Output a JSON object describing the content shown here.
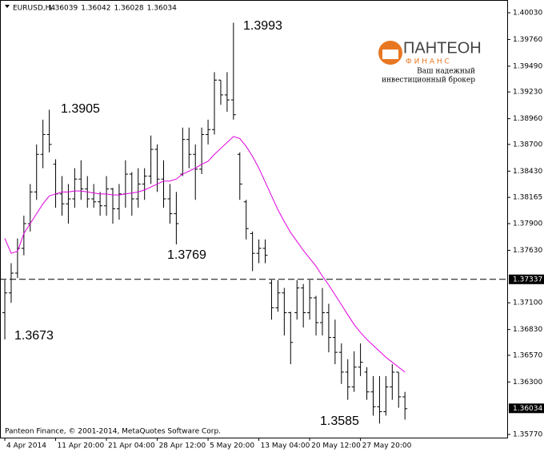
{
  "chart_data": {
    "type": "ohlc",
    "title": "EURUSD,H4",
    "header_values": [
      1.36039,
      1.36042,
      1.36028,
      1.36034
    ],
    "footer": "Panteon Finance, © 2001-2014, MetaQuotes Software Corp.",
    "logo": {
      "name": "ПАНТЕОН",
      "sub": "Ф И Н А Н С",
      "line1": "Ваш надежный",
      "line2": "инвестиционный брокер"
    },
    "annotations": [
      "1.3993",
      "1.3905",
      "1.3769",
      "1.3673",
      "1.3585"
    ],
    "color": "#000000",
    "ma_color": "#e000e0",
    "xlim": [
      -0.76,
      79.1
    ],
    "xticks": [
      {
        "value": 0,
        "label": "4 Apr 2014"
      },
      {
        "value": 8,
        "label": "11 Apr 20:00"
      },
      {
        "value": 16,
        "label": "21 Apr 04:00"
      },
      {
        "value": 24,
        "label": "28 Apr 12:00"
      },
      {
        "value": 32,
        "label": "5 May 20:00"
      },
      {
        "value": 40,
        "label": "13 May 04:00"
      },
      {
        "value": 48,
        "label": "20 May 12:00"
      },
      {
        "value": 56,
        "label": "27 May 20:00"
      }
    ],
    "ylim": [
      1.35738,
      1.40159
    ],
    "yticks": [
      {
        "value": 1.4003,
        "label": "1.40030"
      },
      {
        "value": 1.3976,
        "label": "1.39760"
      },
      {
        "value": 1.3949,
        "label": "1.39490"
      },
      {
        "value": 1.3923,
        "label": "1.39230"
      },
      {
        "value": 1.3896,
        "label": "1.38960"
      },
      {
        "value": 1.387,
        "label": "1.38700"
      },
      {
        "value": 1.3843,
        "label": "1.38430"
      },
      1.38165,
      {
        "value": 1.379,
        "label": "1.37900"
      },
      {
        "value": 1.3763,
        "label": "1.37630"
      },
      {
        "value": 1.371,
        "label": "1.37100"
      },
      {
        "value": 1.3683,
        "label": "1.36830"
      },
      {
        "value": 1.3657,
        "label": "1.36570"
      },
      {
        "value": 1.363,
        "label": "1.36300"
      },
      {
        "value": 1.3577,
        "label": "1.35770"
      }
    ],
    "hline": 1.37337,
    "last_price": 1.36034,
    "bars": [
      [
        1.37,
        1.3733,
        1.3673,
        1.372
      ],
      [
        1.372,
        1.375,
        1.371,
        1.374
      ],
      [
        1.374,
        1.3775,
        1.3735,
        1.3765
      ],
      [
        1.3765,
        1.3798,
        1.3758,
        1.379
      ],
      [
        1.379,
        1.383,
        1.3782,
        1.3822
      ],
      [
        1.3822,
        1.387,
        1.3814,
        1.386
      ],
      [
        1.386,
        1.3895,
        1.3846,
        1.388
      ],
      [
        1.388,
        1.3905,
        1.3862,
        1.387
      ],
      [
        1.385,
        1.3855,
        1.3806,
        1.382
      ],
      [
        1.382,
        1.3838,
        1.3798,
        1.381
      ],
      [
        1.381,
        1.383,
        1.379,
        1.3815
      ],
      [
        1.3815,
        1.3846,
        1.3806,
        1.3835
      ],
      [
        1.3835,
        1.3854,
        1.3814,
        1.3825
      ],
      [
        1.3825,
        1.3838,
        1.3806,
        1.3815
      ],
      [
        1.3815,
        1.383,
        1.3806,
        1.3812
      ],
      [
        1.3812,
        1.3822,
        1.3798,
        1.3808
      ],
      [
        1.3808,
        1.3838,
        1.3798,
        1.3825
      ],
      [
        1.3825,
        1.3826,
        1.379,
        1.3805
      ],
      [
        1.3805,
        1.383,
        1.3794,
        1.382
      ],
      [
        1.382,
        1.3854,
        1.3806,
        1.384
      ],
      [
        1.384,
        1.3842,
        1.3798,
        1.3815
      ],
      [
        1.3815,
        1.3846,
        1.3806,
        1.383
      ],
      [
        1.383,
        1.3846,
        1.3814,
        1.3838
      ],
      [
        1.3838,
        1.3879,
        1.383,
        1.3865
      ],
      [
        1.3865,
        1.387,
        1.3822,
        1.3835
      ],
      [
        1.3835,
        1.3854,
        1.3806,
        1.3815
      ],
      [
        1.3815,
        1.383,
        1.379,
        1.38
      ],
      [
        1.38,
        1.3822,
        1.3769,
        1.379
      ],
      [
        1.384,
        1.3887,
        1.3838,
        1.3875
      ],
      [
        1.3875,
        1.3887,
        1.3846,
        1.386
      ],
      [
        1.386,
        1.387,
        1.3814,
        1.3845
      ],
      [
        1.3845,
        1.3887,
        1.384,
        1.388
      ],
      [
        1.388,
        1.3895,
        1.387,
        1.3885
      ],
      [
        1.3885,
        1.3943,
        1.388,
        1.3935
      ],
      [
        1.3935,
        1.3935,
        1.391,
        1.392
      ],
      [
        1.392,
        1.3943,
        1.3903,
        1.3915
      ],
      [
        1.3915,
        1.3993,
        1.3895,
        1.39
      ],
      [
        1.386,
        1.3862,
        1.3814,
        1.383
      ],
      [
        1.3812,
        1.3814,
        1.3774,
        1.3785
      ],
      [
        1.378,
        1.3782,
        1.3742,
        1.376
      ],
      [
        1.376,
        1.3774,
        1.375,
        1.3765
      ],
      [
        1.3765,
        1.3774,
        1.375,
        1.3758
      ],
      [
        1.373,
        1.3733,
        1.3693,
        1.3705
      ],
      [
        1.3705,
        1.3733,
        1.3701,
        1.372
      ],
      [
        1.372,
        1.3725,
        1.3677,
        1.37
      ],
      [
        1.37,
        1.3701,
        1.3648,
        1.367
      ],
      [
        1.37,
        1.3733,
        1.3693,
        1.3725
      ],
      [
        1.3725,
        1.3729,
        1.3685,
        1.37
      ],
      [
        1.37,
        1.3733,
        1.3693,
        1.3715
      ],
      [
        1.3715,
        1.3717,
        1.3677,
        1.369
      ],
      [
        1.369,
        1.3725,
        1.3677,
        1.37
      ],
      [
        1.37,
        1.3709,
        1.366,
        1.3675
      ],
      [
        1.3675,
        1.3693,
        1.3648,
        1.366
      ],
      [
        1.366,
        1.3669,
        1.3628,
        1.364
      ],
      [
        1.364,
        1.3653,
        1.3612,
        1.3625
      ],
      [
        1.3625,
        1.3661,
        1.362,
        1.3645
      ],
      [
        1.3645,
        1.3669,
        1.3636,
        1.365
      ],
      [
        1.364,
        1.3645,
        1.3612,
        1.362
      ],
      [
        1.362,
        1.3636,
        1.3596,
        1.3605
      ],
      [
        1.3605,
        1.3636,
        1.3588,
        1.36
      ],
      [
        1.36,
        1.3636,
        1.3596,
        1.3625
      ],
      [
        1.3625,
        1.3648,
        1.3612,
        1.364
      ],
      [
        1.364,
        1.364,
        1.3604,
        1.3615
      ],
      [
        1.3615,
        1.362,
        1.3592,
        1.3603
      ]
    ],
    "ma": [
      1.3775,
      1.376,
      1.3762,
      1.378,
      1.379,
      1.38,
      1.381,
      1.3818,
      1.382,
      1.3822,
      1.3822,
      1.3823,
      1.3823,
      1.3822,
      1.3821,
      1.382,
      1.382,
      1.3819,
      1.3819,
      1.382,
      1.3821,
      1.3822,
      1.3824,
      1.3827,
      1.383,
      1.3833,
      1.3833,
      1.3835,
      1.384,
      1.3843,
      1.3846,
      1.385,
      1.3853,
      1.386,
      1.3866,
      1.3872,
      1.3878,
      1.3876,
      1.3868,
      1.3858,
      1.3846,
      1.3832,
      1.3818,
      1.3804,
      1.3792,
      1.3781,
      1.3772,
      1.3763,
      1.3755,
      1.3747,
      1.3737,
      1.3728,
      1.3718,
      1.3708,
      1.3698,
      1.3688,
      1.368,
      1.3673,
      1.3667,
      1.3661,
      1.3655,
      1.365,
      1.3645,
      1.364
    ]
  }
}
